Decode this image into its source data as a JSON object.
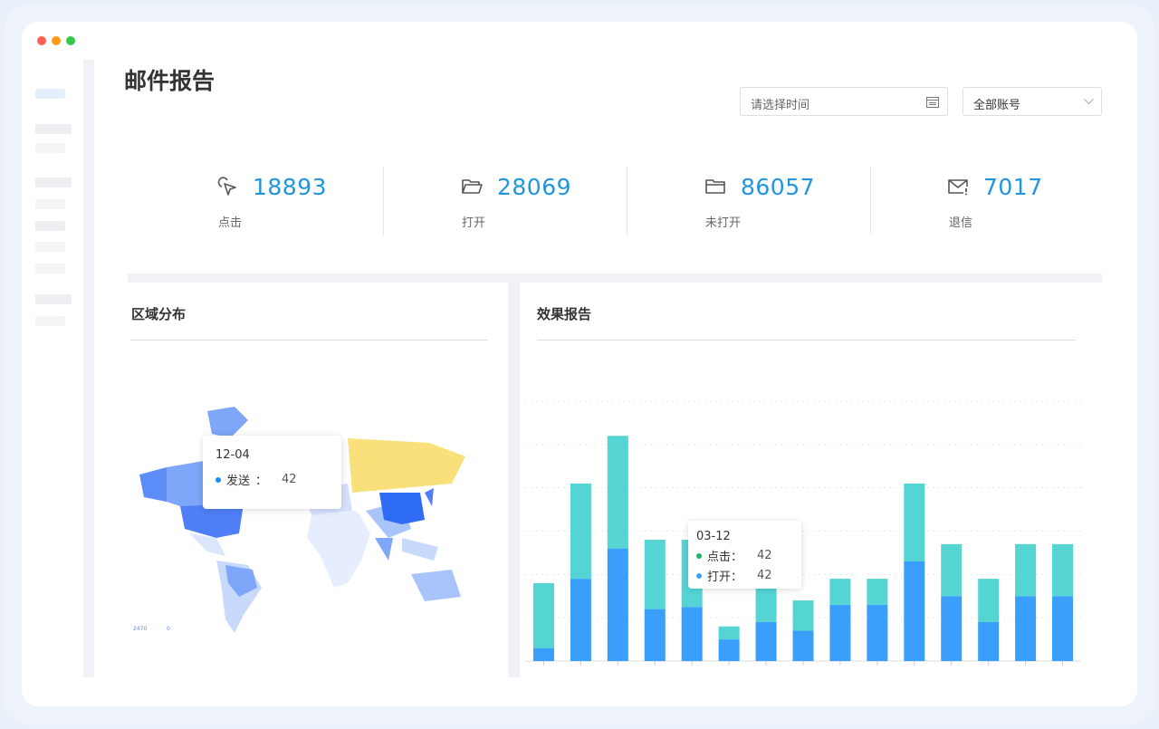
{
  "window_controls": {
    "colors": [
      "#fe5f57",
      "#febc2e",
      "#28c840"
    ]
  },
  "page": {
    "title": "邮件报告"
  },
  "filters": {
    "date_placeholder": "请选择时间",
    "account_select": "全部账号"
  },
  "stats": [
    {
      "icon": "cursor-click-icon",
      "value": "18893",
      "label": "点击"
    },
    {
      "icon": "folder-open-icon",
      "value": "28069",
      "label": "打开"
    },
    {
      "icon": "folder-icon",
      "value": "86057",
      "label": "未打开"
    },
    {
      "icon": "mail-bounce-icon",
      "value": "7017",
      "label": "退信"
    }
  ],
  "region_panel": {
    "title": "区域分布",
    "tooltip": {
      "date": "12-04",
      "series": "发送",
      "value": "42"
    },
    "legend_max": "2470",
    "legend_min": "0"
  },
  "effect_panel": {
    "title": "效果报告",
    "tooltip": {
      "date": "03-12",
      "rows": [
        {
          "label": "点击：",
          "value": "42",
          "color": "#1bb86b"
        },
        {
          "label": "打开：",
          "value": "42",
          "color": "#3a9ffb"
        }
      ]
    }
  },
  "chart_data": {
    "type": "bar",
    "stacked": true,
    "grid": true,
    "ylim": [
      0,
      60
    ],
    "series": [
      {
        "name": "打开",
        "color": "#3a9ffb",
        "values": [
          3,
          19,
          26,
          12,
          12.5,
          5,
          9,
          7,
          13,
          13,
          23,
          15,
          9,
          15,
          15
        ]
      },
      {
        "name": "点击",
        "color": "#55d4d4",
        "values": [
          15,
          22,
          26,
          16,
          15.5,
          3,
          19,
          7,
          6,
          6,
          18,
          12,
          10,
          12,
          12
        ]
      }
    ]
  }
}
